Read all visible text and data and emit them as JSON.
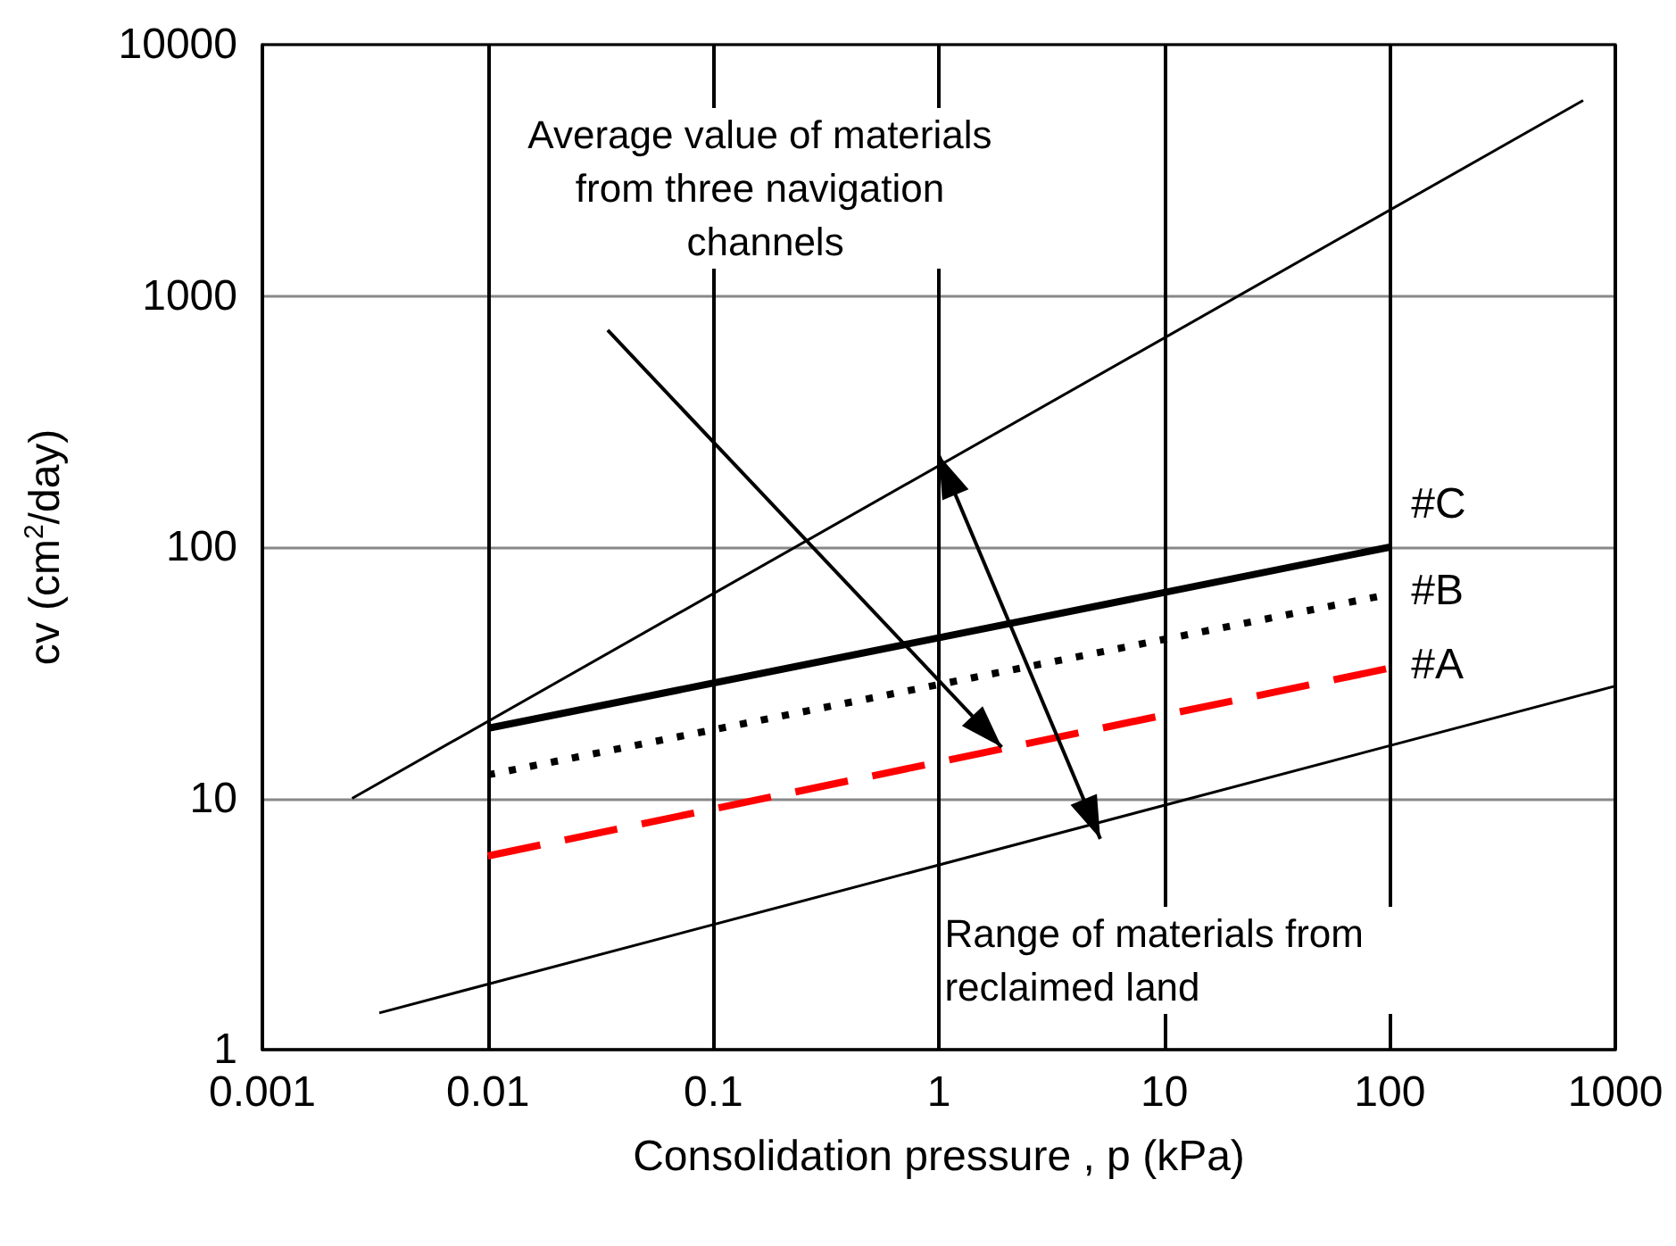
{
  "chart_data": {
    "type": "line",
    "xlabel": "Consolidation pressure , p (kPa)",
    "ylabel": "cv (cm$^{2}$/day)",
    "log": "xy",
    "grid": true,
    "legend": false,
    "xlim": [
      0.001,
      1000
    ],
    "xticks": [
      0.001,
      0.01,
      0.1,
      1,
      10,
      100,
      1000
    ],
    "ylim": [
      1,
      10000
    ],
    "yticks": [
      1,
      10,
      100,
      1000,
      10000
    ],
    "series": [
      {
        "name": "#C",
        "color": "#000000",
        "line_style": "solid",
        "x": [
          0.01,
          100
        ],
        "values": [
          19,
          100
        ]
      },
      {
        "name": "#B",
        "color": "#000000",
        "line_style": "dotted",
        "x": [
          0.01,
          100
        ],
        "values": [
          12.4,
          65
        ]
      },
      {
        "name": "#A",
        "color": "#ff0000",
        "line_style": "dashed",
        "x": [
          0.01,
          100
        ],
        "values": [
          5.9,
          33
        ]
      },
      {
        "color": "#000000",
        "line_style": "solid",
        "x": [
          0.0025,
          720
        ],
        "values": [
          10,
          6000
        ]
      },
      {
        "color": "#000000",
        "line_style": "solid",
        "x": [
          0.0033,
          1000
        ],
        "values": [
          1.4,
          28
        ]
      }
    ],
    "annotations": [
      "Average value of materials from three navigation channels",
      "Range of materials from reclaimed land"
    ]
  }
}
